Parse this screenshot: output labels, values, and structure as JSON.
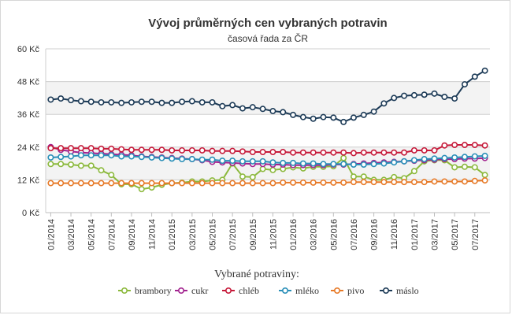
{
  "chart_data": {
    "type": "line",
    "title": "Vývoj průměrných cen vybraných potravin",
    "subtitle": "časová řada za ČR",
    "ylim": [
      0,
      60
    ],
    "yticks": [
      0,
      12,
      24,
      36,
      48,
      60
    ],
    "ytick_labels": [
      "0 Kč",
      "12 Kč",
      "24 Kč",
      "36 Kč",
      "48 Kč",
      "60 Kč"
    ],
    "grid": true,
    "legend_title": "Vybrané potraviny:",
    "legend_position": "bottom",
    "x": [
      "01/2014",
      "02/2014",
      "03/2014",
      "04/2014",
      "05/2014",
      "06/2014",
      "07/2014",
      "08/2014",
      "09/2014",
      "10/2014",
      "11/2014",
      "12/2014",
      "01/2015",
      "02/2015",
      "03/2015",
      "04/2015",
      "05/2015",
      "06/2015",
      "07/2015",
      "08/2015",
      "09/2015",
      "10/2015",
      "11/2015",
      "12/2015",
      "01/2016",
      "02/2016",
      "03/2016",
      "04/2016",
      "05/2016",
      "06/2016",
      "07/2016",
      "08/2016",
      "09/2016",
      "10/2016",
      "11/2016",
      "12/2016",
      "01/2017",
      "02/2017",
      "03/2017",
      "04/2017",
      "05/2017",
      "06/2017",
      "07/2017",
      "08/2017"
    ],
    "xtick_labels": [
      "01/2014",
      "03/2014",
      "05/2014",
      "07/2014",
      "09/2014",
      "11/2014",
      "01/2015",
      "03/2015",
      "05/2015",
      "07/2015",
      "09/2015",
      "11/2015",
      "01/2016",
      "03/2016",
      "05/2016",
      "07/2016",
      "09/2016",
      "11/2016",
      "01/2017",
      "03/2017",
      "05/2017",
      "07/2017"
    ],
    "series": [
      {
        "name": "brambory",
        "color": "#8cb93d",
        "values": [
          17.8,
          17.8,
          17.6,
          17.2,
          17.2,
          15.5,
          13.8,
          10.4,
          10.4,
          8.6,
          9.2,
          10.2,
          10.8,
          11.0,
          11.4,
          11.4,
          11.8,
          12.0,
          18.0,
          13.2,
          13.0,
          16.0,
          15.6,
          16.0,
          16.6,
          16.2,
          16.8,
          16.8,
          17.0,
          20.0,
          13.2,
          13.2,
          12.0,
          12.0,
          13.0,
          12.6,
          15.2,
          18.8,
          19.2,
          19.2,
          16.6,
          16.8,
          16.6,
          13.8
        ]
      },
      {
        "name": "cukr",
        "color": "#a2238f",
        "values": [
          24.0,
          23.0,
          22.4,
          22.0,
          21.8,
          21.6,
          21.4,
          21.2,
          21.0,
          20.6,
          20.4,
          20.2,
          20.0,
          19.8,
          19.6,
          19.2,
          18.6,
          18.4,
          18.2,
          18.0,
          17.8,
          17.8,
          17.6,
          17.6,
          17.4,
          17.4,
          17.4,
          17.4,
          17.6,
          17.6,
          17.8,
          18.0,
          18.2,
          18.4,
          18.6,
          18.8,
          19.0,
          19.2,
          19.4,
          19.6,
          19.6,
          19.8,
          19.8,
          20.0
        ]
      },
      {
        "name": "chléb",
        "color": "#c61a3a",
        "values": [
          23.6,
          23.6,
          23.6,
          23.6,
          23.6,
          23.4,
          23.4,
          23.2,
          23.0,
          23.0,
          23.0,
          23.0,
          22.8,
          22.8,
          22.8,
          22.8,
          22.6,
          22.6,
          22.6,
          22.4,
          22.2,
          22.2,
          22.2,
          22.2,
          22.0,
          22.0,
          22.0,
          22.0,
          22.0,
          22.0,
          21.8,
          22.0,
          22.0,
          22.0,
          22.0,
          22.0,
          22.8,
          22.8,
          22.8,
          24.6,
          24.8,
          24.8,
          24.8,
          24.6
        ]
      },
      {
        "name": "mléko",
        "color": "#2a8fb8",
        "values": [
          20.2,
          20.4,
          20.6,
          21.0,
          21.0,
          21.0,
          21.0,
          20.6,
          20.6,
          20.4,
          20.2,
          20.0,
          19.8,
          19.6,
          19.6,
          19.4,
          19.4,
          19.0,
          19.0,
          18.8,
          18.8,
          18.8,
          18.4,
          18.2,
          18.2,
          18.0,
          18.0,
          17.8,
          17.8,
          17.8,
          17.6,
          17.6,
          17.8,
          18.0,
          18.4,
          18.8,
          19.2,
          19.6,
          19.8,
          20.0,
          20.2,
          20.4,
          20.6,
          20.8
        ]
      },
      {
        "name": "pivo",
        "color": "#e77a28",
        "values": [
          10.8,
          10.8,
          10.8,
          10.8,
          10.8,
          10.8,
          10.8,
          10.8,
          10.8,
          10.8,
          10.8,
          10.8,
          10.8,
          10.8,
          10.8,
          10.8,
          10.8,
          10.8,
          10.8,
          10.8,
          10.8,
          10.8,
          10.8,
          11.0,
          11.0,
          11.0,
          11.0,
          11.0,
          11.0,
          11.0,
          11.2,
          11.2,
          11.2,
          11.2,
          11.2,
          11.2,
          11.2,
          11.2,
          11.4,
          11.4,
          11.4,
          11.4,
          11.6,
          11.8
        ]
      },
      {
        "name": "máslo",
        "color": "#1d3b57",
        "values": [
          41.4,
          41.8,
          41.2,
          40.8,
          40.6,
          40.4,
          40.4,
          40.2,
          40.4,
          40.6,
          40.6,
          40.2,
          40.2,
          40.6,
          40.8,
          40.4,
          40.4,
          39.0,
          39.4,
          38.2,
          38.6,
          38.0,
          37.2,
          36.8,
          35.8,
          35.0,
          34.4,
          35.0,
          34.8,
          33.2,
          34.8,
          35.8,
          37.0,
          40.0,
          42.0,
          42.8,
          43.0,
          43.2,
          43.6,
          42.4,
          41.8,
          47.0,
          49.8,
          52.0
        ]
      }
    ]
  }
}
